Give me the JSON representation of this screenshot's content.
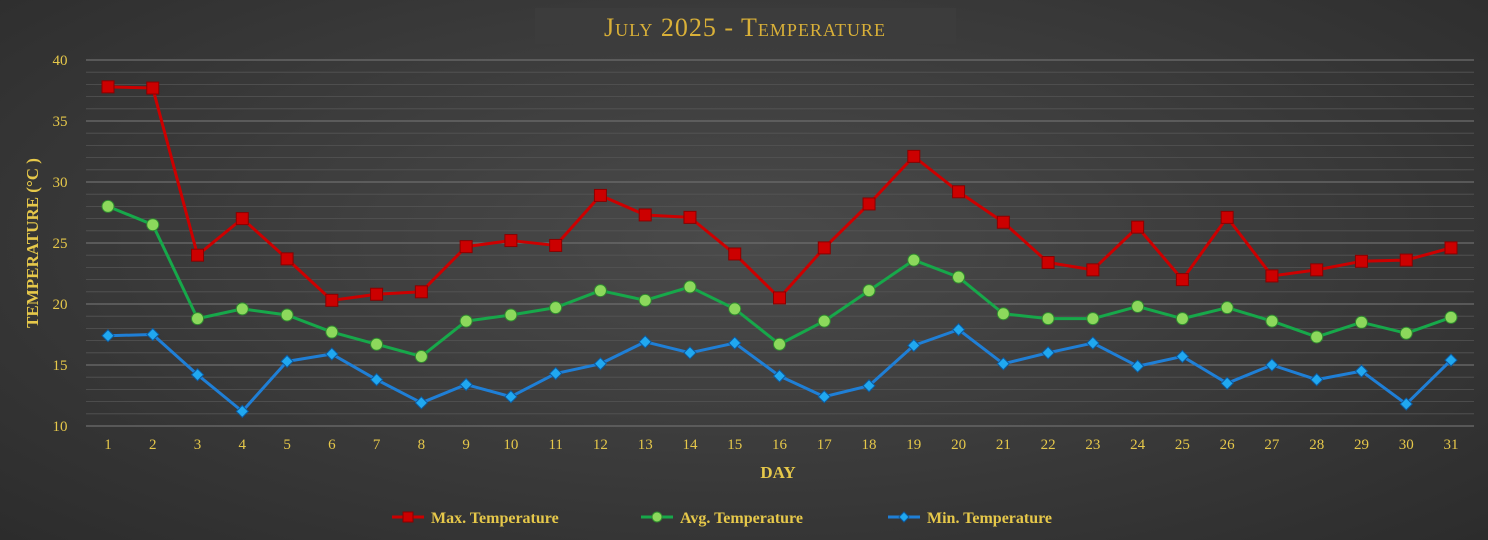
{
  "chart_data": {
    "type": "line",
    "title": "July 2025 - Temperature",
    "xlabel": "DAY",
    "ylabel": "TEMPERATURE (°C )",
    "ylim": [
      10,
      40
    ],
    "yticks": [
      "10",
      "15",
      "20",
      "25",
      "30",
      "35",
      "40"
    ],
    "x": [
      "1",
      "2",
      "3",
      "4",
      "5",
      "6",
      "7",
      "8",
      "9",
      "10",
      "11",
      "12",
      "13",
      "14",
      "15",
      "16",
      "17",
      "18",
      "19",
      "20",
      "21",
      "22",
      "23",
      "24",
      "25",
      "26",
      "27",
      "28",
      "29",
      "30",
      "31"
    ],
    "grid": true,
    "legend_position": "bottom",
    "series": [
      {
        "name": "Max. Temperature",
        "color": "#cc0000",
        "marker": "square",
        "values": [
          37.8,
          37.7,
          24.0,
          27.0,
          23.7,
          20.3,
          20.8,
          21.0,
          24.7,
          25.2,
          24.8,
          28.9,
          27.3,
          27.1,
          24.1,
          20.5,
          24.6,
          28.2,
          32.1,
          29.2,
          26.7,
          23.4,
          22.8,
          26.3,
          22.0,
          27.1,
          22.3,
          22.8,
          23.5,
          23.6,
          24.6
        ]
      },
      {
        "name": "Avg. Temperature",
        "color": "#17a84a",
        "marker": "circle",
        "values": [
          28.0,
          26.5,
          18.8,
          19.6,
          19.1,
          17.7,
          16.7,
          15.7,
          18.6,
          19.1,
          19.7,
          21.1,
          20.3,
          21.4,
          19.6,
          16.7,
          18.6,
          21.1,
          23.6,
          22.2,
          19.2,
          18.8,
          18.8,
          19.8,
          18.8,
          19.7,
          18.6,
          17.3,
          18.5,
          17.6,
          18.9
        ]
      },
      {
        "name": "Min. Temperature",
        "color": "#1f7fd6",
        "marker": "diamond",
        "values": [
          17.4,
          17.5,
          14.2,
          11.2,
          15.3,
          15.9,
          13.8,
          11.9,
          13.4,
          12.4,
          14.3,
          15.1,
          16.9,
          16.0,
          16.8,
          14.1,
          12.4,
          13.3,
          16.6,
          17.9,
          15.1,
          16.0,
          16.8,
          14.9,
          15.7,
          13.5,
          15.0,
          13.8,
          14.5,
          11.8,
          15.4
        ]
      }
    ]
  }
}
